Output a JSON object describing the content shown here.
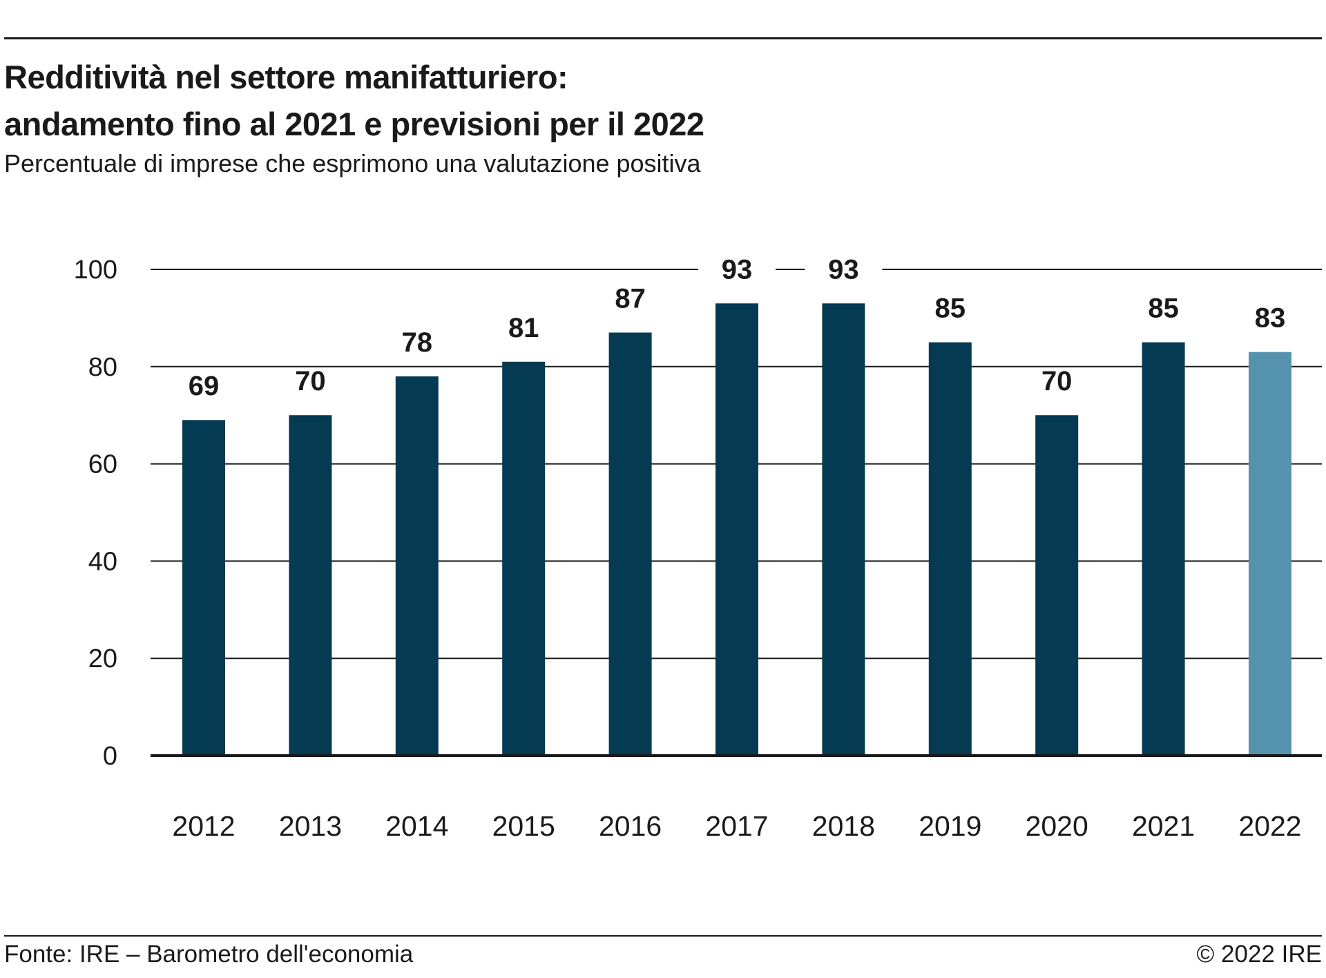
{
  "header": {
    "title_line_1": "Redditività nel settore manifatturiero:",
    "title_line_2": "andamento fino al 2021 e previsioni per il 2022",
    "subtitle": "Percentuale di imprese che esprimono una valutazione positiva"
  },
  "footer": {
    "source": "Fonte: IRE – Barometro dell'economia",
    "copyright": "© 2022 IRE"
  },
  "colors": {
    "bar_actual": "#043a52",
    "bar_forecast": "#5592ad",
    "grid": "#1a1a1a",
    "text": "#1a1a1a"
  },
  "chart_data": {
    "type": "bar",
    "title": "Redditività nel settore manifatturiero: andamento fino al 2021 e previsioni per il 2022",
    "subtitle": "Percentuale di imprese che esprimono una valutazione positiva",
    "categories": [
      "2012",
      "2013",
      "2014",
      "2015",
      "2016",
      "2017",
      "2018",
      "2019",
      "2020",
      "2021",
      "2022"
    ],
    "values": [
      69,
      70,
      78,
      81,
      87,
      93,
      93,
      85,
      70,
      85,
      83
    ],
    "bar_kind": [
      "actual",
      "actual",
      "actual",
      "actual",
      "actual",
      "actual",
      "actual",
      "actual",
      "actual",
      "actual",
      "forecast"
    ],
    "data_labels": [
      "69",
      "70",
      "78",
      "81",
      "87",
      "93",
      "93",
      "85",
      "70",
      "85",
      "83"
    ],
    "y_ticks": [
      0,
      20,
      40,
      60,
      80,
      100
    ],
    "ylim": [
      0,
      100
    ],
    "xlabel": "",
    "ylabel": "",
    "grid": true,
    "legend": "none"
  }
}
